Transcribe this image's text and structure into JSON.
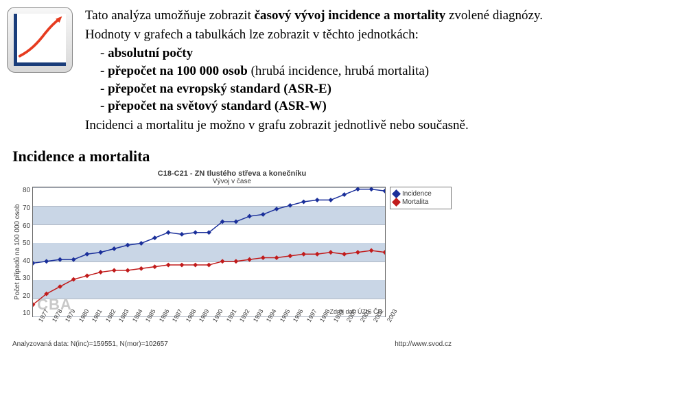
{
  "intro": {
    "line1_a": "Tato analýza umožňuje zobrazit ",
    "line1_b_bold": "časový vývoj incidence a mortality",
    "line1_c": " zvolené diagnózy.",
    "line2": "Hodnoty v grafech a tabulkách lze zobrazit v těchto jednotkách:",
    "units": [
      {
        "bold": "absolutní počty",
        "rest": ""
      },
      {
        "bold": "přepočet na 100 000 osob",
        "rest": " (hrubá incidence, hrubá mortalita)"
      },
      {
        "bold": "přepočet na evropský standard (ASR-E)",
        "rest": ""
      },
      {
        "bold": "přepočet na světový standard (ASR-W)",
        "rest": ""
      }
    ],
    "line3": "Incidenci a mortalitu je možno v grafu zobrazit jednotlivě nebo současně."
  },
  "section_title": "Incidence a mortalita",
  "chart": {
    "type": "line",
    "title": "C18-C21 - ZN tlustého střeva a konečníku",
    "subtitle": "Vývoj v čase",
    "ylabel": "Počet případů na 100 000 osob",
    "ylim": [
      10,
      80
    ],
    "ytick_step": 10,
    "yticks": [
      80,
      70,
      60,
      50,
      40,
      30,
      20,
      10
    ],
    "years": [
      1977,
      1978,
      1979,
      1980,
      1981,
      1982,
      1983,
      1984,
      1985,
      1986,
      1987,
      1988,
      1989,
      1990,
      1991,
      1992,
      1993,
      1994,
      1995,
      1996,
      1997,
      1998,
      1999,
      2000,
      2001,
      2002,
      2003
    ],
    "series": [
      {
        "name": "Incidence",
        "color": "#1a2f9a",
        "marker": "diamond",
        "values": [
          38,
          39,
          40,
          40,
          43,
          44,
          46,
          48,
          49,
          52,
          55,
          54,
          55,
          55,
          61,
          61,
          64,
          65,
          68,
          70,
          72,
          73,
          73,
          76,
          79,
          79,
          78
        ]
      },
      {
        "name": "Mortalita",
        "color": "#c11b1b",
        "marker": "diamond",
        "values": [
          15,
          21,
          25,
          29,
          31,
          33,
          34,
          34,
          35,
          36,
          37,
          37,
          37,
          37,
          39,
          39,
          40,
          41,
          41,
          42,
          43,
          43,
          44,
          43,
          44,
          45,
          44
        ]
      }
    ],
    "band_color": "#c9d6e6",
    "grid_color": "#b0b8c4",
    "background_color": "#ffffff",
    "line_width": 1.5,
    "marker_size": 5,
    "watermark": "CBA",
    "credit": "Zdroj dat: ÚZIS ČR",
    "footer_left": "Analyzovaná data: N(inc)=159551, N(mor)=102657",
    "footer_right": "http://www.svod.cz"
  },
  "icon": {
    "axis_color": "#1a3d7a",
    "curve_color": "#e63b1f"
  }
}
